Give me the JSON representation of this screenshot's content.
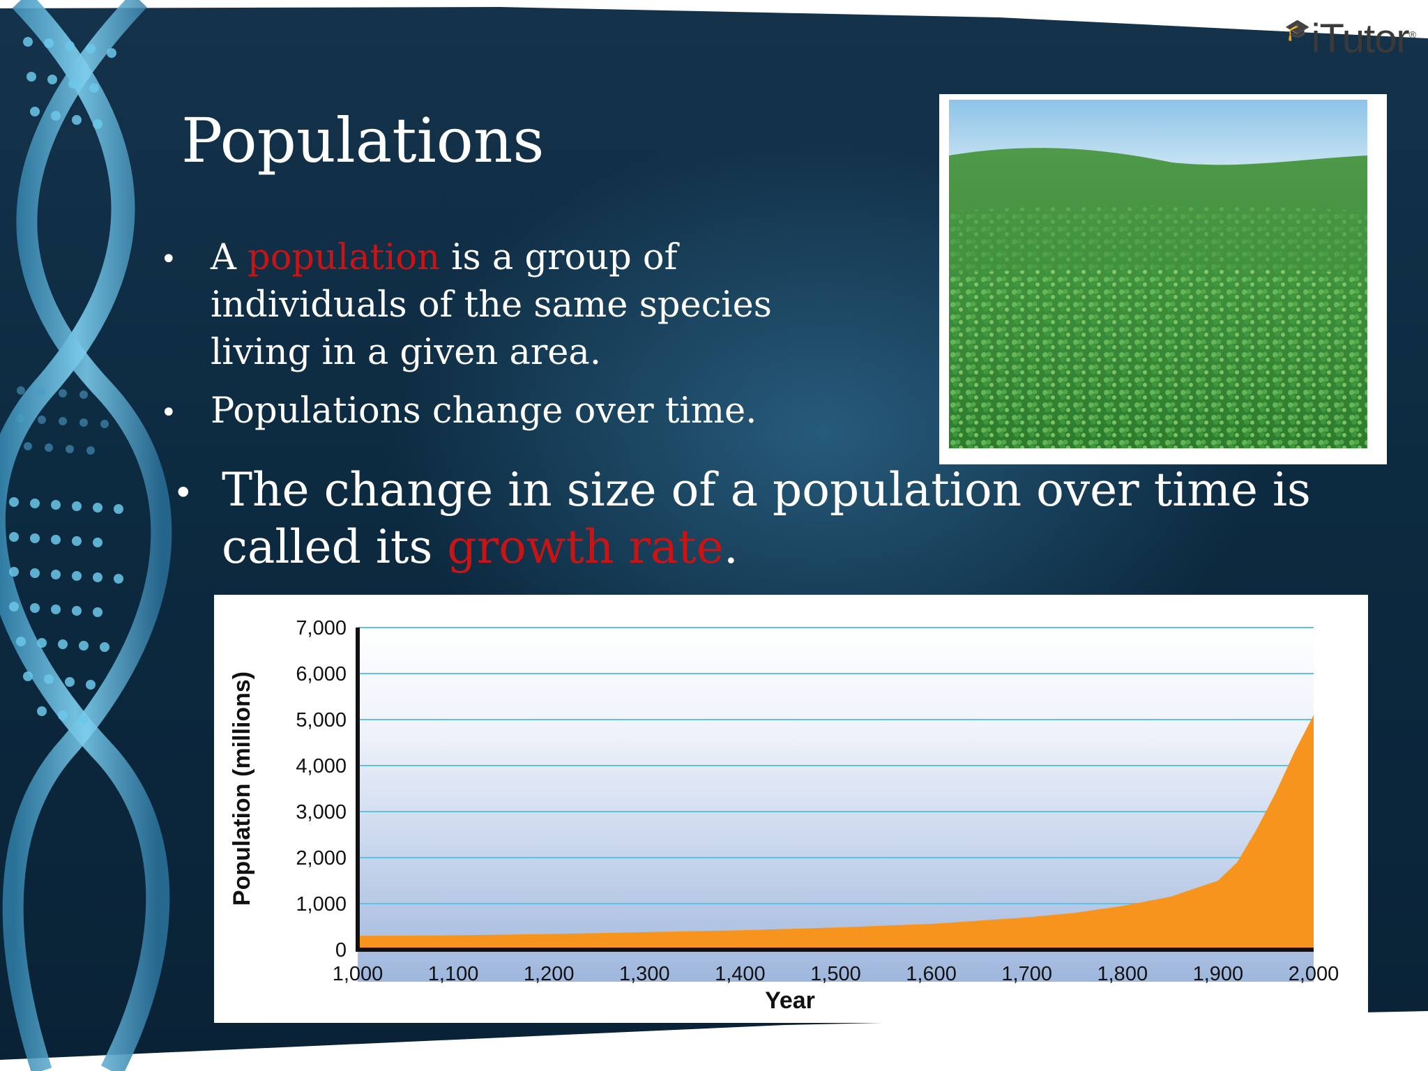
{
  "logo": {
    "text": "iTutor",
    "mark": "®",
    "icon": "graduation-cap-icon"
  },
  "title": "Populations",
  "bullets_small": [
    {
      "pre": "A ",
      "highlight": "population",
      "post": " is a group of individuals of the same species living in a given area."
    },
    {
      "text": "Populations change over time."
    }
  ],
  "bullet_large": {
    "pre": "The change in size of a population over time is called its ",
    "highlight": "growth rate",
    "post": "."
  },
  "bullet_symbol": "•",
  "colors": {
    "highlight": "#c81414",
    "area_fill": "#f7941d",
    "gridline": "#5bc4e6",
    "background": "#0c2a40"
  },
  "photo": {
    "icon": "clover-field-photo"
  },
  "chart_data": {
    "type": "area",
    "xlabel": "Year",
    "ylabel": "Population (millions)",
    "xlim": [
      1000,
      2000
    ],
    "ylim": [
      0,
      7000
    ],
    "x_ticks": [
      "1,000",
      "1,100",
      "1,200",
      "1,300",
      "1,400",
      "1,500",
      "1,600",
      "1,700",
      "1,800",
      "1,900",
      "2,000"
    ],
    "y_ticks": [
      "0",
      "1,000",
      "2,000",
      "3,000",
      "4,000",
      "5,000",
      "6,000",
      "7,000"
    ],
    "x_tick_values": [
      1000,
      1100,
      1200,
      1300,
      1400,
      1500,
      1600,
      1700,
      1800,
      1900,
      2000
    ],
    "y_tick_values": [
      0,
      1000,
      2000,
      3000,
      4000,
      5000,
      6000,
      7000
    ],
    "grid": true,
    "series": [
      {
        "x": [
          1000,
          1100,
          1200,
          1300,
          1400,
          1500,
          1600,
          1700,
          1750,
          1800,
          1850,
          1900,
          1920,
          1940,
          1960,
          1980,
          2000
        ],
        "values": [
          300,
          310,
          340,
          380,
          420,
          480,
          560,
          700,
          800,
          950,
          1150,
          1500,
          1900,
          2600,
          3400,
          4300,
          5100
        ]
      }
    ]
  }
}
